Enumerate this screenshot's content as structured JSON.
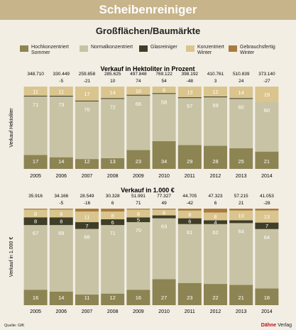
{
  "header": {
    "title": "Scheibenreiniger"
  },
  "subtitle": "Großflächen/Baumärkte",
  "legend": [
    {
      "label_1": "Hochkonzentriert",
      "label_2": "Sommer",
      "color": "#8d8453"
    },
    {
      "label_1": "Normalkonzentriert",
      "label_2": "",
      "color": "#c7c3a4"
    },
    {
      "label_1": "Glasreiniger",
      "label_2": "",
      "color": "#3f3e28"
    },
    {
      "label_1": "Konzentriert",
      "label_2": "Winter",
      "color": "#d9c58d"
    },
    {
      "label_1": "Gebrauchsfertig",
      "label_2": "Winter",
      "color": "#a97b3c"
    }
  ],
  "footer": {
    "source": "Quelle: GfK",
    "brand_bold": "Dähne",
    "brand_rest": " Verlag"
  },
  "chart_data": [
    {
      "type": "bar",
      "title": "Verkauf in Hektoliter in Prozent",
      "ylabel": "Verkauf Hektoliter",
      "categories": [
        "2005",
        "2006",
        "2007",
        "2008",
        "2009",
        "2010",
        "2011",
        "2012",
        "2013",
        "2014"
      ],
      "totals": [
        "348.710",
        "330.449",
        "259.858",
        "285.625",
        "497.848",
        "769.122",
        "398.192",
        "410.761",
        "510.839",
        "373.140"
      ],
      "changes": [
        "",
        "-5",
        "-21",
        "10",
        "74",
        "54",
        "-48",
        "3",
        "24",
        "-27"
      ],
      "series": [
        {
          "name": "Hochkonzentriert Sommer",
          "values": [
            17,
            14,
            12,
            13,
            23,
            34,
            29,
            28,
            25,
            21
          ]
        },
        {
          "name": "Normalkonzentriert",
          "values": [
            71,
            73,
            70,
            72,
            66,
            58,
            57,
            59,
            60,
            60
          ]
        },
        {
          "name": "Glasreiniger",
          "values": [
            1,
            1,
            1,
            1,
            1,
            1,
            1,
            1,
            1,
            0
          ]
        },
        {
          "name": "Konzentriert Winter",
          "values": [
            11,
            11,
            17,
            14,
            10,
            8,
            13,
            12,
            14,
            19
          ]
        },
        {
          "name": "Gebrauchsfertig Winter",
          "values": [
            0,
            0,
            0,
            0,
            0,
            0,
            0,
            0,
            0,
            0
          ]
        }
      ],
      "segment_labels": [
        [
          "17",
          "71",
          "",
          "11",
          ""
        ],
        [
          "14",
          "73",
          "",
          "11",
          ""
        ],
        [
          "12",
          "70",
          "",
          "17",
          ""
        ],
        [
          "13",
          "72",
          "",
          "14",
          ""
        ],
        [
          "23",
          "66",
          "",
          "10",
          ""
        ],
        [
          "34",
          "58",
          "",
          "8",
          ""
        ],
        [
          "29",
          "57",
          "",
          "13",
          ""
        ],
        [
          "28",
          "59",
          "",
          "12",
          ""
        ],
        [
          "25",
          "60",
          "",
          "14",
          ""
        ],
        [
          "21",
          "60",
          "",
          "19",
          ""
        ]
      ],
      "ylim": [
        0,
        100
      ],
      "grid": false
    },
    {
      "type": "bar",
      "title": "Verkauf in 1.000 €",
      "ylabel": "Verkauf in 1.000 €",
      "categories": [
        "2005",
        "2006",
        "2007",
        "2008",
        "2009",
        "2010",
        "2011",
        "2012",
        "2013",
        "2014"
      ],
      "totals": [
        "35.916",
        "34.166",
        "28.549",
        "30.328",
        "51.991",
        "77.327",
        "44.705",
        "47.323",
        "57.215",
        "41.053"
      ],
      "changes": [
        "",
        "-5",
        "-16",
        "6",
        "71",
        "49",
        "-42",
        "6",
        "21",
        "-28"
      ],
      "series": [
        {
          "name": "Hochkonzentriert Sommer",
          "values": [
            16,
            14,
            11,
            12,
            16,
            27,
            23,
            22,
            21,
            18
          ]
        },
        {
          "name": "Normalkonzentriert",
          "values": [
            67,
            69,
            68,
            71,
            70,
            63,
            61,
            62,
            64,
            64
          ]
        },
        {
          "name": "Glasreiniger",
          "values": [
            8,
            8,
            7,
            6,
            5,
            3,
            6,
            4,
            3,
            7
          ]
        },
        {
          "name": "Konzentriert Winter",
          "values": [
            8,
            8,
            11,
            8,
            8,
            6,
            8,
            8,
            10,
            13
          ]
        },
        {
          "name": "Gebrauchsfertig Winter",
          "values": [
            1,
            1,
            3,
            3,
            1,
            1,
            2,
            4,
            2,
            2
          ]
        }
      ],
      "segment_labels": [
        [
          "16",
          "67",
          "8",
          "8",
          ""
        ],
        [
          "14",
          "69",
          "8",
          "8",
          ""
        ],
        [
          "11",
          "68",
          "7",
          "11",
          ""
        ],
        [
          "12",
          "71",
          "6",
          "8",
          ""
        ],
        [
          "16",
          "70",
          "5",
          "8",
          ""
        ],
        [
          "27",
          "63",
          "",
          "6",
          ""
        ],
        [
          "23",
          "61",
          "6",
          "8",
          ""
        ],
        [
          "22",
          "62",
          "4",
          "8",
          ""
        ],
        [
          "21",
          "64",
          "",
          "10",
          ""
        ],
        [
          "18",
          "64",
          "7",
          "13",
          ""
        ]
      ],
      "ylim": [
        0,
        100
      ],
      "grid": false
    }
  ]
}
